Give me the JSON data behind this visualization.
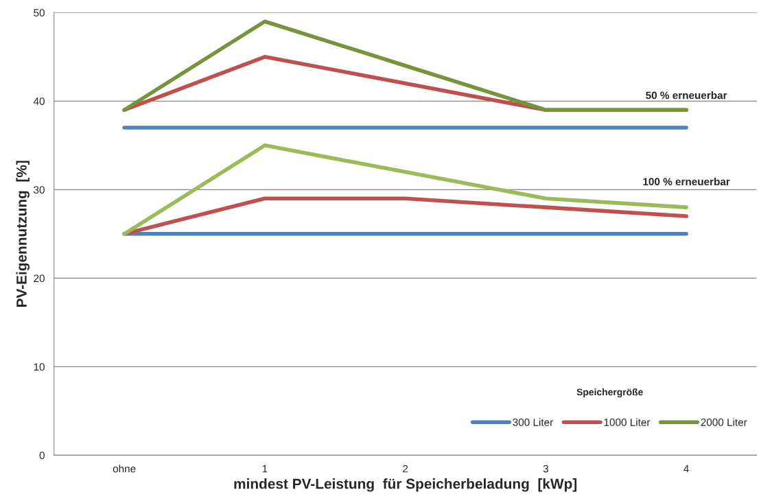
{
  "chart_data": {
    "type": "line",
    "xlabel": "mindest PV-Leistung  für Speicherbeladung  [kWp]",
    "ylabel": "PV-Eigennutzung  [%]",
    "categories": [
      "ohne",
      "1",
      "2",
      "3",
      "4"
    ],
    "series": [
      {
        "name": "300 Liter",
        "color": "#4f81bd",
        "values": [
          37,
          37,
          37,
          37,
          37
        ]
      },
      {
        "name": "1000 Liter",
        "color": "#c0504d",
        "values": [
          39,
          45,
          42,
          39,
          39
        ]
      },
      {
        "name": "2000 Liter",
        "color": "#77933c",
        "values": [
          39,
          49,
          44,
          39,
          39
        ]
      },
      {
        "color": "#4f81bd",
        "values": [
          25,
          25,
          25,
          25,
          25
        ]
      },
      {
        "color": "#c0504d",
        "values": [
          25,
          29,
          29,
          28,
          27
        ]
      },
      {
        "color": "#9bbb59",
        "values": [
          25,
          35,
          32,
          29,
          28
        ]
      }
    ],
    "legend_title": "Speichergröße",
    "legend": "bottom right",
    "ylim": [
      0,
      50
    ],
    "yticks": [
      0,
      10,
      20,
      30,
      40,
      50
    ],
    "grid": "y",
    "marker": "none",
    "line_style": "solid",
    "annotations": [
      "50 % erneuerbar",
      "100 % erneuerbar"
    ]
  }
}
